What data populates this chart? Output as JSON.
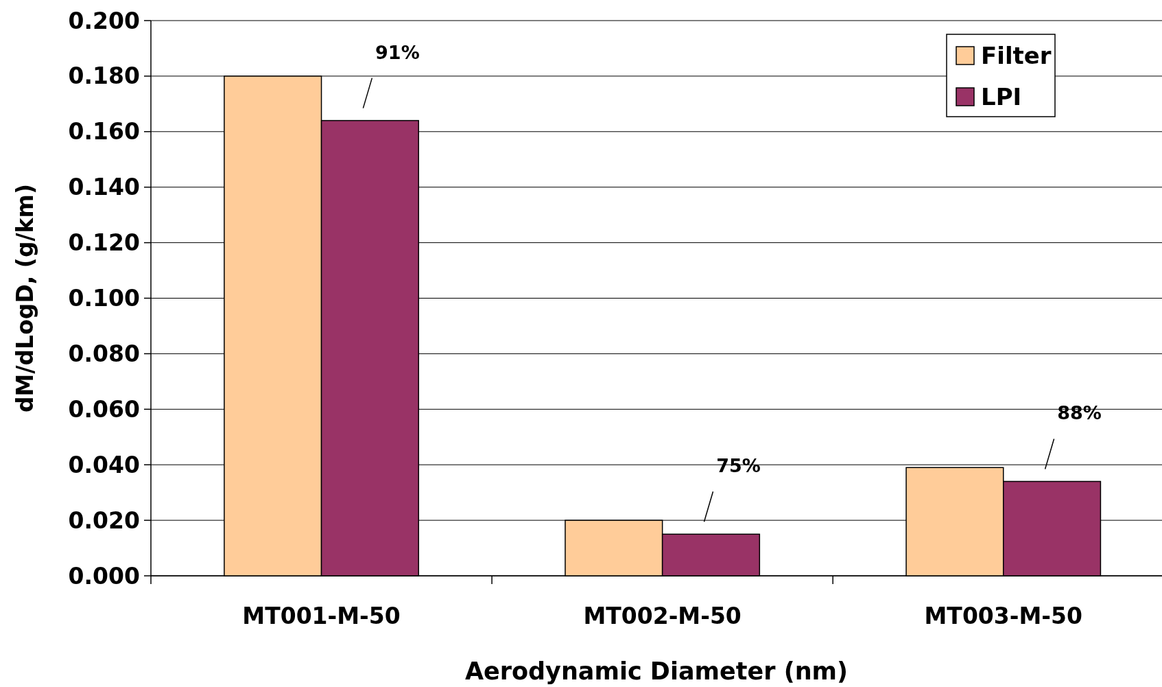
{
  "chart_data": {
    "type": "bar",
    "xlabel": "Aerodynamic Diameter (nm)",
    "ylabel": "dM/dLogD, (g/km)",
    "categories": [
      "MT001-M-50",
      "MT002-M-50",
      "MT003-M-50"
    ],
    "series": [
      {
        "name": "Filter",
        "color": "#ffcc99",
        "values": [
          0.18,
          0.02,
          0.039
        ]
      },
      {
        "name": "LPI",
        "color": "#993366",
        "values": [
          0.164,
          0.015,
          0.034
        ]
      }
    ],
    "ylim": [
      0,
      0.2
    ],
    "yticks": [
      {
        "value": 0,
        "label": "0.000"
      },
      {
        "value": 0.02,
        "label": "0.020"
      },
      {
        "value": 0.04,
        "label": "0.040"
      },
      {
        "value": 0.06,
        "label": "0.060"
      },
      {
        "value": 0.08,
        "label": "0.080"
      },
      {
        "value": 0.1,
        "label": "0.100"
      },
      {
        "value": 0.12,
        "label": "0.120"
      },
      {
        "value": 0.14,
        "label": "0.140"
      },
      {
        "value": 0.16,
        "label": "0.160"
      },
      {
        "value": 0.18,
        "label": "0.180"
      },
      {
        "value": 0.2,
        "label": "0.200"
      }
    ],
    "annotations": [
      "91%",
      "75%",
      "88%"
    ],
    "grid": "y",
    "legend": "top right"
  }
}
